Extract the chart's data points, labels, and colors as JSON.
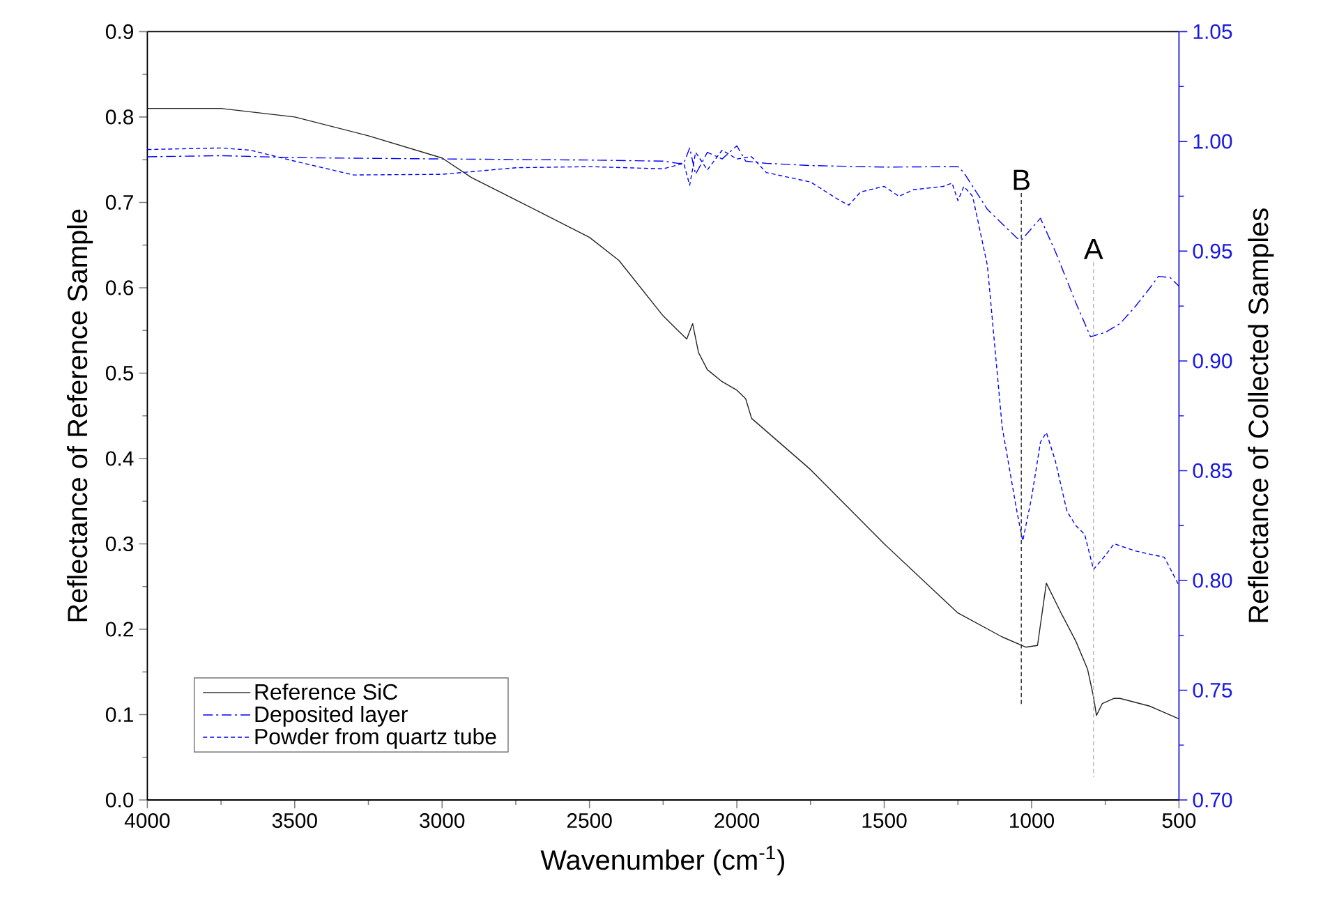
{
  "chart_data": {
    "type": "line",
    "xlabel": "Wavenumber (cm$^{-1}$)",
    "ylabel": "Reflectance of Reference Sample",
    "y2label": "Reflectance of Collected Samples",
    "xlim": [
      4000,
      500
    ],
    "xticks": [
      4000,
      3500,
      3000,
      2500,
      2000,
      1500,
      1000,
      500
    ],
    "ylim": [
      0,
      0.9
    ],
    "yticks": [
      {
        "value": 0,
        "label": "0.0"
      },
      {
        "value": 0.1,
        "label": "0.1"
      },
      {
        "value": 0.2,
        "label": "0.2"
      },
      {
        "value": 0.3,
        "label": "0.3"
      },
      {
        "value": 0.4,
        "label": "0.4"
      },
      {
        "value": 0.5,
        "label": "0.5"
      },
      {
        "value": 0.6,
        "label": "0.6"
      },
      {
        "value": 0.7,
        "label": "0.7"
      },
      {
        "value": 0.8,
        "label": "0.8"
      },
      {
        "value": 0.9,
        "label": "0.9"
      }
    ],
    "y2lim": [
      0.7,
      1.05
    ],
    "y2ticks": [
      {
        "value": 0.7,
        "label": "0.70"
      },
      {
        "value": 0.75,
        "label": "0.75"
      },
      {
        "value": 0.8,
        "label": "0.80"
      },
      {
        "value": 0.85,
        "label": "0.85"
      },
      {
        "value": 0.9,
        "label": "0.90"
      },
      {
        "value": 0.95,
        "label": "0.95"
      },
      {
        "value": 1.0,
        "label": "1.00"
      },
      {
        "value": 1.05,
        "label": "1.05"
      }
    ],
    "legend": "bottom left",
    "marker": "none",
    "series": [
      {
        "name": "Reference SiC",
        "color": "#222222",
        "axis": "y",
        "line_style": "solid",
        "x": [
          4000,
          3750,
          3500,
          3250,
          3000,
          2900,
          2750,
          2500,
          2400,
          2250,
          2200,
          2170,
          2150,
          2130,
          2100,
          2050,
          2000,
          1970,
          1950,
          1750,
          1500,
          1250,
          1100,
          1020,
          980,
          950,
          900,
          850,
          810,
          790,
          780,
          760,
          720,
          700,
          600,
          500
        ],
        "values": [
          0.81,
          0.81,
          0.8,
          0.778,
          0.752,
          0.729,
          0.703,
          0.659,
          0.632,
          0.567,
          0.55,
          0.54,
          0.558,
          0.524,
          0.504,
          0.49,
          0.48,
          0.47,
          0.447,
          0.387,
          0.3,
          0.219,
          0.191,
          0.179,
          0.181,
          0.254,
          0.219,
          0.186,
          0.153,
          0.121,
          0.099,
          0.113,
          0.119,
          0.119,
          0.11,
          0.095
        ]
      },
      {
        "name": "Deposited layer",
        "color": "#0000ff",
        "axis": "y2",
        "line_style": "dashdot",
        "x": [
          4000,
          3750,
          3500,
          3000,
          2500,
          2250,
          2200,
          2180,
          2160,
          2140,
          2100,
          2050,
          2000,
          1970,
          1900,
          1750,
          1500,
          1250,
          1230,
          1150,
          1050,
          1035,
          970,
          920,
          850,
          800,
          750,
          700,
          650,
          600,
          570,
          530,
          500
        ],
        "values": [
          0.993,
          0.9935,
          0.9926,
          0.992,
          0.9915,
          0.991,
          0.99,
          0.99,
          0.997,
          0.985,
          0.995,
          0.992,
          0.998,
          0.991,
          0.99,
          0.989,
          0.9883,
          0.9885,
          0.9858,
          0.969,
          0.956,
          0.955,
          0.965,
          0.95,
          0.9265,
          0.911,
          0.913,
          0.917,
          0.9245,
          0.933,
          0.9385,
          0.938,
          0.934
        ]
      },
      {
        "name": "Powder from quartz tube",
        "color": "#0000ff",
        "axis": "y2",
        "line_style": "dashed",
        "x": [
          4000,
          3750,
          3650,
          3500,
          3300,
          3000,
          2750,
          2500,
          2250,
          2180,
          2160,
          2140,
          2100,
          2050,
          2000,
          1950,
          1900,
          1750,
          1650,
          1620,
          1580,
          1500,
          1450,
          1400,
          1300,
          1270,
          1250,
          1230,
          1200,
          1150,
          1100,
          1050,
          1030,
          1000,
          970,
          950,
          920,
          880,
          850,
          820,
          790,
          750,
          720,
          650,
          600,
          550,
          500
        ],
        "values": [
          0.9963,
          0.997,
          0.996,
          0.991,
          0.9847,
          0.985,
          0.988,
          0.9885,
          0.9875,
          0.99,
          0.98,
          0.995,
          0.987,
          0.996,
          0.992,
          0.993,
          0.9858,
          0.9815,
          0.973,
          0.971,
          0.977,
          0.9795,
          0.975,
          0.978,
          0.9795,
          0.981,
          0.973,
          0.9795,
          0.975,
          0.9435,
          0.87,
          0.8315,
          0.818,
          0.8378,
          0.863,
          0.8674,
          0.8547,
          0.8315,
          0.825,
          0.821,
          0.805,
          0.8114,
          0.8167,
          0.8135,
          0.812,
          0.8106,
          0.7977
        ]
      }
    ],
    "ref_lines": [
      {
        "axis": "x",
        "value": 1035,
        "label": "B",
        "color": "#222222",
        "line_style": "dashed"
      },
      {
        "axis": "x",
        "value": 790,
        "label": "A",
        "color": "#b8b8b8",
        "line_style": "dashed"
      }
    ]
  }
}
